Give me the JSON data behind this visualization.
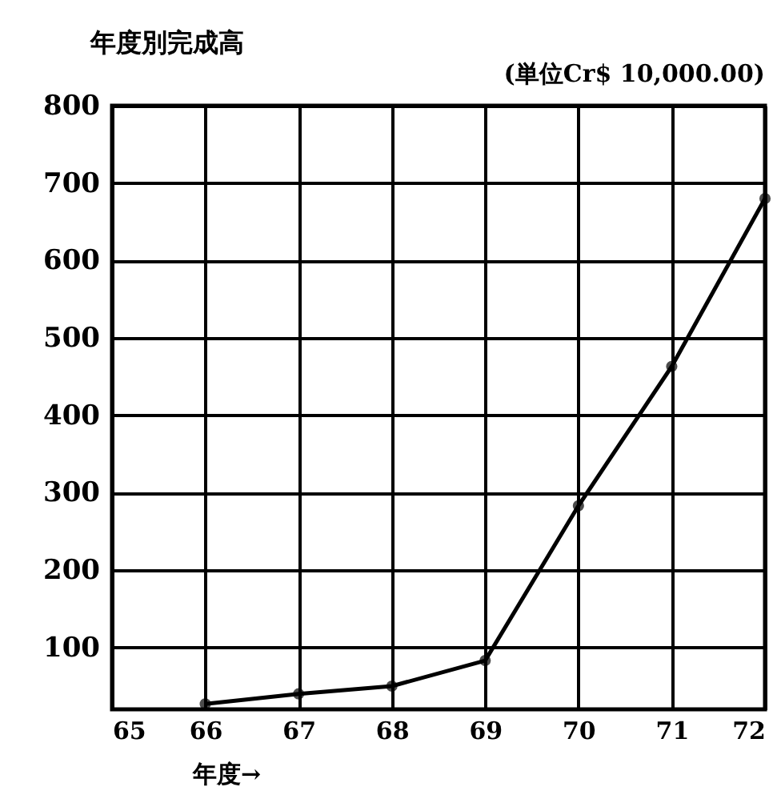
{
  "chart_data": {
    "type": "line",
    "title": "年度別完成高",
    "subtitle": "(単位Cr$ 10,000.00)",
    "xlabel": "年度→",
    "x": [
      66,
      67,
      68,
      69,
      70,
      71,
      72
    ],
    "series": [
      {
        "color": "#000000",
        "values": [
          27,
          40,
          50,
          83,
          283,
          463,
          680
        ]
      }
    ],
    "xlim": [
      65,
      72
    ],
    "xticks": [
      65,
      66,
      67,
      68,
      69,
      70,
      71,
      72
    ],
    "ylim": [
      20,
      800
    ],
    "yticks": [
      100,
      200,
      300,
      400,
      500,
      600,
      700,
      800
    ],
    "grid": true,
    "marker": "circle",
    "line_style": "solid"
  }
}
